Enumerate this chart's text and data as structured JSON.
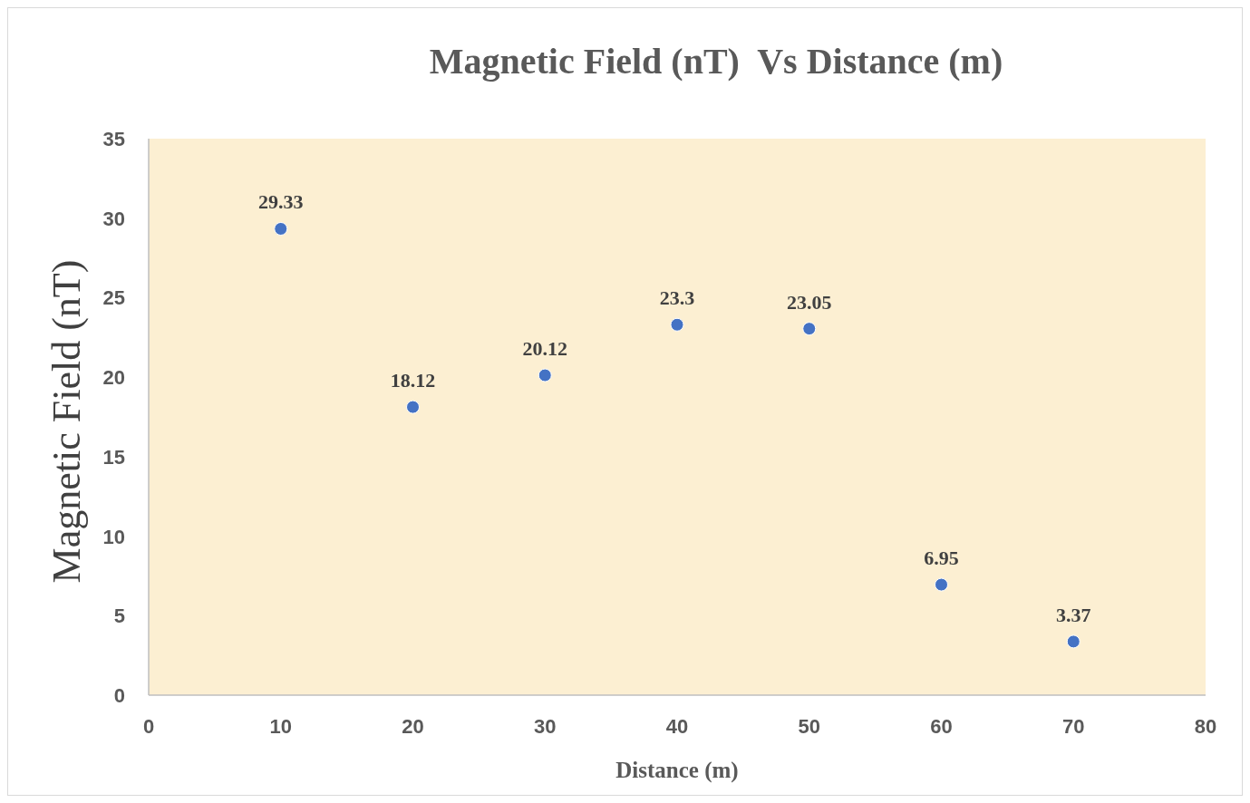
{
  "chart_data": {
    "type": "scatter",
    "title": "Magnetic Field (nT)  Vs Distance (m)",
    "xlabel": "Distance (m)",
    "ylabel": "Magnetic Field (nT)",
    "x": [
      10,
      20,
      30,
      40,
      50,
      60,
      70
    ],
    "series": [
      {
        "color": "#4472c4",
        "values": [
          29.33,
          18.12,
          20.12,
          23.3,
          23.05,
          6.95,
          3.37
        ]
      }
    ],
    "xlim": [
      0,
      80
    ],
    "xticks": [
      0,
      10,
      20,
      30,
      40,
      50,
      60,
      70,
      80
    ],
    "ylim": [
      0,
      35
    ],
    "yticks": [
      0,
      5,
      10,
      15,
      20,
      25,
      30,
      35
    ],
    "data_labels": true,
    "marker": "circle",
    "grid": false
  }
}
